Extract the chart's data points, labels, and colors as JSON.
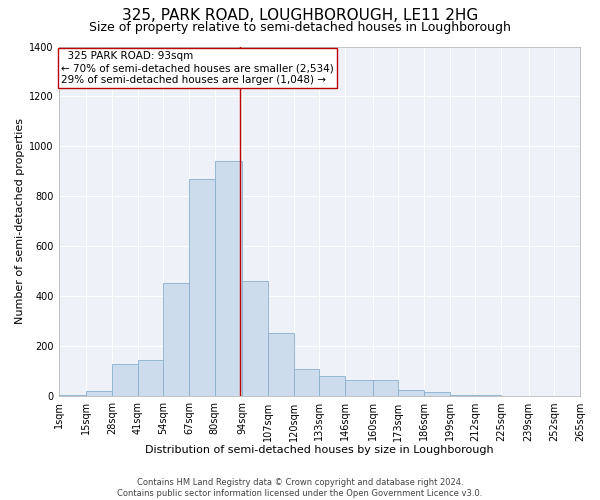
{
  "title": "325, PARK ROAD, LOUGHBOROUGH, LE11 2HG",
  "subtitle": "Size of property relative to semi-detached houses in Loughborough",
  "xlabel": "Distribution of semi-detached houses by size in Loughborough",
  "ylabel": "Number of semi-detached properties",
  "footer_line1": "Contains HM Land Registry data © Crown copyright and database right 2024.",
  "footer_line2": "Contains public sector information licensed under the Open Government Licence v3.0.",
  "property_label": "325 PARK ROAD: 93sqm",
  "smaller_pct": "70% of semi-detached houses are smaller (2,534)",
  "larger_pct": "29% of semi-detached houses are larger (1,048)",
  "property_size": 93,
  "bar_color": "#ccdcec",
  "bar_edge_color": "#8ab0cc",
  "vline_color": "#bb0000",
  "annotation_box_color": "#ffffff",
  "annotation_box_edge": "#bb0000",
  "bins": [
    1,
    15,
    28,
    41,
    54,
    67,
    80,
    94,
    107,
    120,
    133,
    146,
    160,
    173,
    186,
    199,
    212,
    225,
    239,
    252,
    265
  ],
  "bin_labels": [
    "1sqm",
    "15sqm",
    "28sqm",
    "41sqm",
    "54sqm",
    "67sqm",
    "80sqm",
    "94sqm",
    "107sqm",
    "120sqm",
    "133sqm",
    "146sqm",
    "160sqm",
    "173sqm",
    "186sqm",
    "199sqm",
    "212sqm",
    "225sqm",
    "239sqm",
    "252sqm",
    "265sqm"
  ],
  "counts": [
    5,
    20,
    130,
    145,
    455,
    870,
    940,
    460,
    255,
    110,
    80,
    65,
    65,
    25,
    18,
    5,
    5,
    2,
    2,
    2
  ],
  "ylim": [
    0,
    1400
  ],
  "yticks": [
    0,
    200,
    400,
    600,
    800,
    1000,
    1200,
    1400
  ],
  "background_color": "#ffffff",
  "plot_bg_color": "#eef2f8",
  "grid_color": "#ffffff",
  "title_fontsize": 11,
  "subtitle_fontsize": 9,
  "axis_label_fontsize": 8,
  "tick_fontsize": 7,
  "footer_fontsize": 6,
  "ann_fontsize": 7.5
}
